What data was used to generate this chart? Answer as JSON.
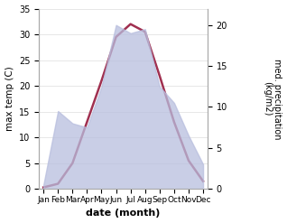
{
  "months": [
    "Jan",
    "Feb",
    "Mar",
    "Apr",
    "May",
    "Jun",
    "Jul",
    "Aug",
    "Sep",
    "Oct",
    "Nov",
    "Dec"
  ],
  "month_positions": [
    0,
    1,
    2,
    3,
    4,
    5,
    6,
    7,
    8,
    9,
    10,
    11
  ],
  "temperature": [
    0.3,
    1.0,
    5.0,
    13.0,
    21.0,
    29.5,
    32.0,
    30.5,
    22.0,
    13.0,
    5.5,
    1.5
  ],
  "precipitation": [
    0.5,
    9.5,
    8.0,
    7.5,
    12.5,
    20.0,
    19.0,
    19.5,
    12.5,
    10.5,
    6.5,
    3.0
  ],
  "temp_color": "#a03050",
  "precip_fill_color": "#b8bede",
  "precip_fill_alpha": 0.75,
  "xlabel": "date (month)",
  "ylabel_left": "max temp (C)",
  "ylabel_right": "med. precipitation\n(kg/m2)",
  "ylim_left": [
    0,
    35
  ],
  "ylim_right": [
    0,
    22
  ],
  "yticks_left": [
    0,
    5,
    10,
    15,
    20,
    25,
    30,
    35
  ],
  "yticks_right": [
    0,
    5,
    10,
    15,
    20
  ],
  "bg_color": "#ffffff",
  "grid_color": "#dddddd"
}
